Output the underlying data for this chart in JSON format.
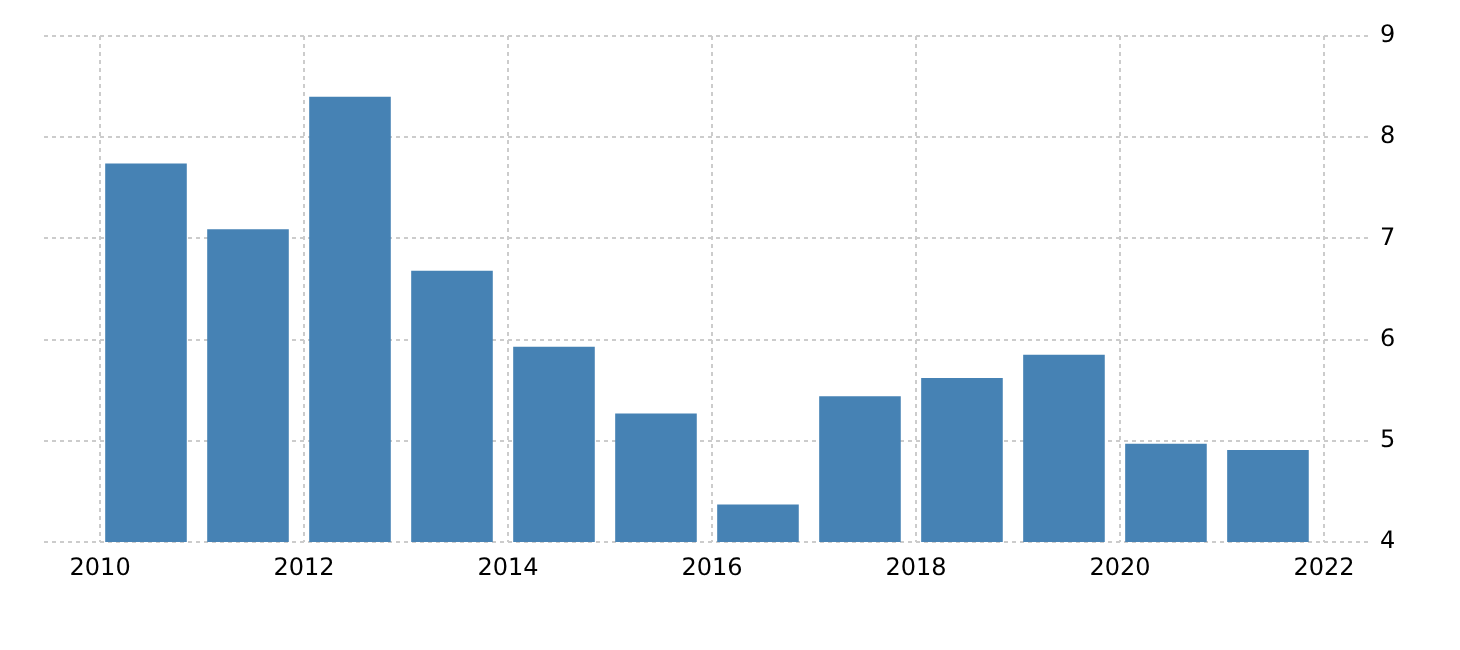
{
  "chart_data": {
    "type": "bar",
    "x": [
      2010.45,
      2011.45,
      2012.45,
      2013.45,
      2014.45,
      2015.45,
      2016.45,
      2017.45,
      2018.45,
      2019.45,
      2020.45,
      2021.45
    ],
    "values": [
      7.74,
      7.09,
      8.4,
      6.68,
      5.93,
      5.27,
      4.37,
      5.44,
      5.62,
      5.85,
      4.97,
      4.91
    ],
    "color": "#4682b4",
    "xlim": [
      2009.45,
      2022.47
    ],
    "xticks": [
      2010,
      2012,
      2014,
      2016,
      2018,
      2020,
      2022
    ],
    "ylim": [
      4,
      9
    ],
    "yticks": [
      4,
      5,
      6,
      7,
      8,
      9
    ],
    "grid": true,
    "legend": false
  }
}
